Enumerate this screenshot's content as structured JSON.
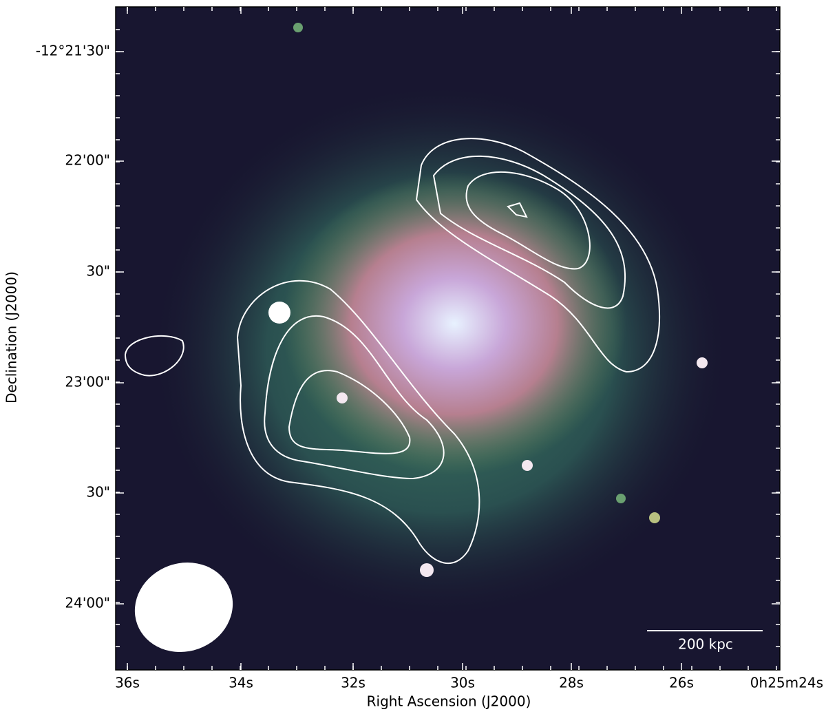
{
  "x_axis": {
    "label": "Right Ascension (J2000)",
    "ticks": [
      "36s",
      "34s",
      "32s",
      "30s",
      "28s",
      "26s",
      "0h25m24s"
    ]
  },
  "y_axis": {
    "label": "Declination (J2000)",
    "ticks": [
      "-12°21'30\"",
      "22'00\"",
      "30\"",
      "23'00\"",
      "30\"",
      "24'00\""
    ]
  },
  "scale_bar": {
    "label": "200 kpc"
  }
}
